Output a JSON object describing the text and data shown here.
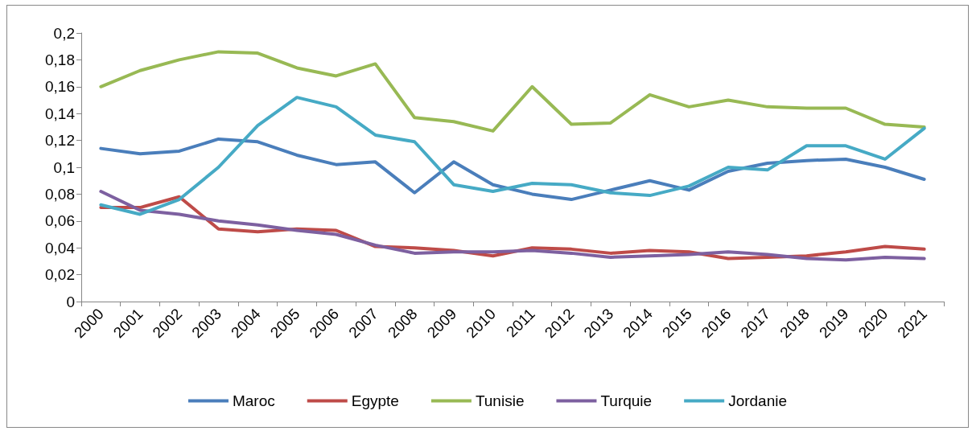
{
  "chart_data": {
    "type": "line",
    "categories": [
      "2000",
      "2001",
      "2002",
      "2003",
      "2004",
      "2005",
      "2006",
      "2007",
      "2008",
      "2009",
      "2010",
      "2011",
      "2012",
      "2013",
      "2014",
      "2015",
      "2016",
      "2017",
      "2018",
      "2019",
      "2020",
      "2021"
    ],
    "series": [
      {
        "name": "Maroc",
        "color": "#4a7ebb",
        "values": [
          0.114,
          0.11,
          0.112,
          0.121,
          0.119,
          0.109,
          0.102,
          0.104,
          0.081,
          0.104,
          0.087,
          0.08,
          0.076,
          0.083,
          0.09,
          0.083,
          0.097,
          0.103,
          0.105,
          0.106,
          0.1,
          0.091
        ]
      },
      {
        "name": "Egypte",
        "color": "#be4b48",
        "values": [
          0.07,
          0.07,
          0.078,
          0.054,
          0.052,
          0.054,
          0.053,
          0.041,
          0.04,
          0.038,
          0.034,
          0.04,
          0.039,
          0.036,
          0.038,
          0.037,
          0.032,
          0.033,
          0.034,
          0.037,
          0.041,
          0.039
        ]
      },
      {
        "name": "Tunisie",
        "color": "#98b954",
        "values": [
          0.16,
          0.172,
          0.18,
          0.186,
          0.185,
          0.174,
          0.168,
          0.177,
          0.137,
          0.134,
          0.127,
          0.16,
          0.132,
          0.133,
          0.154,
          0.145,
          0.15,
          0.145,
          0.144,
          0.144,
          0.132,
          0.13
        ]
      },
      {
        "name": "Turquie",
        "color": "#7d60a0",
        "values": [
          0.082,
          0.068,
          0.065,
          0.06,
          0.057,
          0.053,
          0.05,
          0.042,
          0.036,
          0.037,
          0.037,
          0.038,
          0.036,
          0.033,
          0.034,
          0.035,
          0.037,
          0.035,
          0.032,
          0.031,
          0.033,
          0.032
        ]
      },
      {
        "name": "Jordanie",
        "color": "#46aac5",
        "values": [
          0.072,
          0.065,
          0.076,
          0.1,
          0.131,
          0.152,
          0.145,
          0.124,
          0.119,
          0.087,
          0.082,
          0.088,
          0.087,
          0.081,
          0.079,
          0.086,
          0.1,
          0.098,
          0.116,
          0.116,
          0.106,
          0.129
        ]
      }
    ],
    "ylim": [
      0,
      0.2
    ],
    "yticks": [
      {
        "value": 0,
        "label": "0"
      },
      {
        "value": 0.02,
        "label": "0,02"
      },
      {
        "value": 0.04,
        "label": "0,04"
      },
      {
        "value": 0.06,
        "label": "0,06"
      },
      {
        "value": 0.08,
        "label": "0,08"
      },
      {
        "value": 0.1,
        "label": "0,1"
      },
      {
        "value": 0.12,
        "label": "0,12"
      },
      {
        "value": 0.14,
        "label": "0,14"
      },
      {
        "value": 0.16,
        "label": "0,16"
      },
      {
        "value": 0.18,
        "label": "0,18"
      },
      {
        "value": 0.2,
        "label": "0,2"
      }
    ],
    "grid": false,
    "legend": "bottom",
    "marker": "none",
    "line_style": "solid"
  }
}
